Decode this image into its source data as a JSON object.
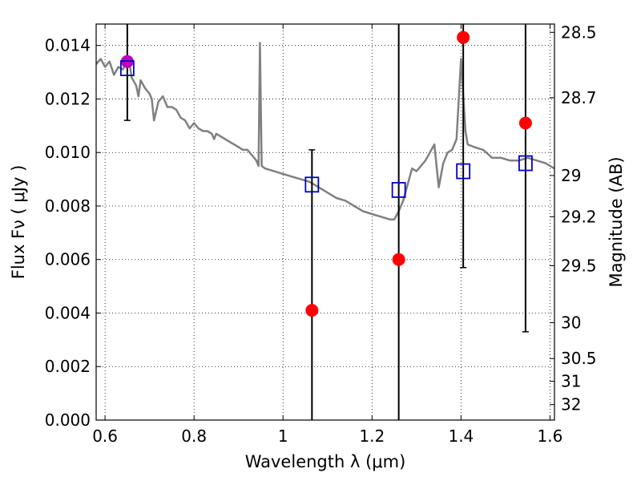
{
  "chart_data": {
    "type": "scatter",
    "xlabel": "Wavelength  λ (μm)",
    "ylabel": "Flux  Fν  ( μJy )",
    "y2label": "Magnitude (AB)",
    "xlim": [
      0.58,
      1.61
    ],
    "ylim": [
      0.0,
      0.0148
    ],
    "grid": true,
    "x_ticks": [
      {
        "value": 0.6,
        "label": "0.6"
      },
      {
        "value": 0.8,
        "label": "0.8"
      },
      {
        "value": 1.0,
        "label": "1"
      },
      {
        "value": 1.2,
        "label": "1.2"
      },
      {
        "value": 1.4,
        "label": "1.4"
      },
      {
        "value": 1.6,
        "label": "1.6"
      }
    ],
    "y_ticks": [
      {
        "value": 0.0,
        "label": "0.000"
      },
      {
        "value": 0.002,
        "label": "0.002"
      },
      {
        "value": 0.004,
        "label": "0.004"
      },
      {
        "value": 0.006,
        "label": "0.006"
      },
      {
        "value": 0.008,
        "label": "0.008"
      },
      {
        "value": 0.01,
        "label": "0.010"
      },
      {
        "value": 0.012,
        "label": "0.012"
      },
      {
        "value": 0.014,
        "label": "0.014"
      }
    ],
    "y2_ticks": [
      {
        "label": "28.5",
        "flux": 0.01449
      },
      {
        "label": "28.7",
        "flux": 0.01205
      },
      {
        "label": "29",
        "flux": 0.00914
      },
      {
        "label": "29.2",
        "flux": 0.0076
      },
      {
        "label": "29.5",
        "flux": 0.00577
      },
      {
        "label": "30",
        "flux": 0.00364
      },
      {
        "label": "30.5",
        "flux": 0.0023
      },
      {
        "label": "31",
        "flux": 0.00145
      },
      {
        "label": "32",
        "flux": 0.00058
      }
    ],
    "model_sed": {
      "color": "#808080",
      "points": [
        [
          0.58,
          0.0133
        ],
        [
          0.59,
          0.0135
        ],
        [
          0.6,
          0.0132
        ],
        [
          0.61,
          0.0134
        ],
        [
          0.62,
          0.0129
        ],
        [
          0.63,
          0.0132
        ],
        [
          0.64,
          0.0131
        ],
        [
          0.65,
          0.0134
        ],
        [
          0.655,
          0.0133
        ],
        [
          0.66,
          0.0128
        ],
        [
          0.67,
          0.0125
        ],
        [
          0.675,
          0.0121
        ],
        [
          0.68,
          0.0127
        ],
        [
          0.69,
          0.0124
        ],
        [
          0.7,
          0.0122
        ],
        [
          0.705,
          0.012
        ],
        [
          0.71,
          0.0112
        ],
        [
          0.72,
          0.0119
        ],
        [
          0.73,
          0.0121
        ],
        [
          0.74,
          0.0117
        ],
        [
          0.75,
          0.0117
        ],
        [
          0.76,
          0.0116
        ],
        [
          0.77,
          0.0113
        ],
        [
          0.78,
          0.0112
        ],
        [
          0.79,
          0.0109
        ],
        [
          0.8,
          0.0111
        ],
        [
          0.81,
          0.0109
        ],
        [
          0.82,
          0.0108
        ],
        [
          0.83,
          0.0108
        ],
        [
          0.84,
          0.0107
        ],
        [
          0.845,
          0.0105
        ],
        [
          0.85,
          0.0107
        ],
        [
          0.86,
          0.0106
        ],
        [
          0.87,
          0.0105
        ],
        [
          0.88,
          0.0104
        ],
        [
          0.89,
          0.0103
        ],
        [
          0.9,
          0.0102
        ],
        [
          0.91,
          0.0101
        ],
        [
          0.92,
          0.0101
        ],
        [
          0.93,
          0.0099
        ],
        [
          0.94,
          0.0097
        ],
        [
          0.945,
          0.0095
        ],
        [
          0.948,
          0.0141
        ],
        [
          0.952,
          0.0095
        ],
        [
          0.96,
          0.0094
        ],
        [
          0.98,
          0.0093
        ],
        [
          1.0,
          0.0092
        ],
        [
          1.02,
          0.0091
        ],
        [
          1.04,
          0.009
        ],
        [
          1.06,
          0.0089
        ],
        [
          1.08,
          0.0087
        ],
        [
          1.1,
          0.0085
        ],
        [
          1.12,
          0.0083
        ],
        [
          1.14,
          0.0082
        ],
        [
          1.16,
          0.008
        ],
        [
          1.18,
          0.0078
        ],
        [
          1.2,
          0.0077
        ],
        [
          1.22,
          0.0076
        ],
        [
          1.24,
          0.0075
        ],
        [
          1.25,
          0.0075
        ],
        [
          1.26,
          0.0078
        ],
        [
          1.27,
          0.0082
        ],
        [
          1.28,
          0.0088
        ],
        [
          1.29,
          0.0094
        ],
        [
          1.3,
          0.0093
        ],
        [
          1.31,
          0.0095
        ],
        [
          1.32,
          0.0097
        ],
        [
          1.34,
          0.0103
        ],
        [
          1.35,
          0.0087
        ],
        [
          1.36,
          0.0096
        ],
        [
          1.37,
          0.01
        ],
        [
          1.38,
          0.0101
        ],
        [
          1.39,
          0.0105
        ],
        [
          1.4,
          0.0135
        ],
        [
          1.41,
          0.0108
        ],
        [
          1.415,
          0.0103
        ],
        [
          1.43,
          0.0102
        ],
        [
          1.45,
          0.0101
        ],
        [
          1.47,
          0.0098
        ],
        [
          1.49,
          0.0098
        ],
        [
          1.51,
          0.0097
        ],
        [
          1.53,
          0.0097
        ],
        [
          1.55,
          0.0098
        ],
        [
          1.57,
          0.0097
        ],
        [
          1.59,
          0.0096
        ],
        [
          1.61,
          0.0094
        ]
      ]
    },
    "model_fluxes": {
      "marker": "open square",
      "color": "#0000cc",
      "points": [
        {
          "x": 0.65,
          "y": 0.01315
        },
        {
          "x": 1.065,
          "y": 0.0088
        },
        {
          "x": 1.26,
          "y": 0.0086
        },
        {
          "x": 1.405,
          "y": 0.0093
        },
        {
          "x": 1.545,
          "y": 0.0096
        }
      ]
    },
    "observed_fluxes": {
      "marker": "filled circle",
      "color": "#ff0000",
      "points": [
        {
          "x": 0.65,
          "y": 0.0134,
          "color": "#bb00bb",
          "err_low": 0.0022,
          "err_high": 0.0016
        },
        {
          "x": 1.065,
          "y": 0.0041,
          "err_low": 0.0041,
          "err_high": 0.006
        },
        {
          "x": 1.26,
          "y": 0.006,
          "err_low": 0.006,
          "err_high": 0.0088
        },
        {
          "x": 1.405,
          "y": 0.0143,
          "err_low": 0.0086,
          "err_high": 0.0005
        },
        {
          "x": 1.545,
          "y": 0.0111,
          "err_low": 0.0078,
          "err_high": 0.0037
        }
      ]
    }
  }
}
